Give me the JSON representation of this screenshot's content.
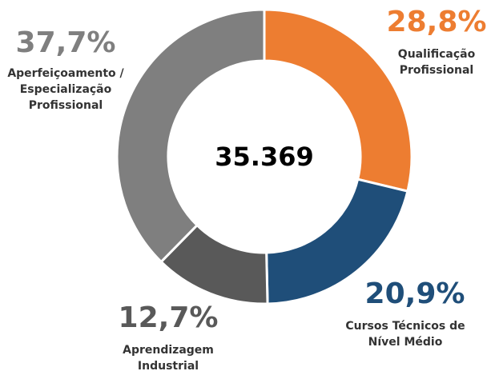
{
  "chart_data": {
    "type": "donut",
    "center_label": "35.369",
    "categories": [
      "Qualificação Profissional",
      "Cursos Técnicos de Nível Médio",
      "Aprendizagem Industrial",
      "Aperfeiçoamento / Especialização Profissional"
    ],
    "values": [
      28.8,
      20.9,
      12.7,
      37.7
    ],
    "value_labels": [
      "28,8%",
      "20,9%",
      "12,7%",
      "37,7%"
    ],
    "colors": [
      "#ed7d31",
      "#1f4e79",
      "#595959",
      "#7f7f7f"
    ]
  }
}
